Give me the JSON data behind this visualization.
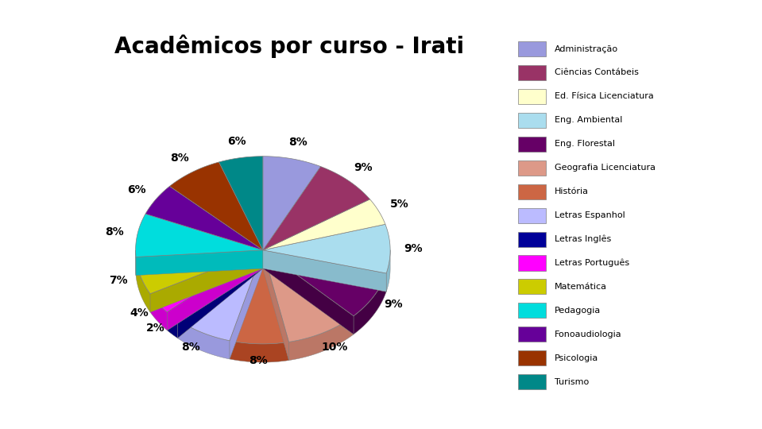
{
  "title": "Acadêmicos por curso - Irati",
  "title_fontsize": 20,
  "title_fontweight": "bold",
  "slices": [
    {
      "label": "Administração",
      "pct": 8,
      "color": "#9999DD",
      "side_color": "#7777BB"
    },
    {
      "label": "Ciências Contábeis",
      "pct": 9,
      "color": "#993366",
      "side_color": "#771144"
    },
    {
      "label": "Ed. Física Licenciatura",
      "pct": 5,
      "color": "#FFFFCC",
      "side_color": "#DDDDAA"
    },
    {
      "label": "Eng. Ambiental",
      "pct": 9,
      "color": "#AADDEE",
      "side_color": "#88BBCC"
    },
    {
      "label": "Eng. Florestal",
      "pct": 9,
      "color": "#660066",
      "side_color": "#440044"
    },
    {
      "label": "Geografia Licenciatura",
      "pct": 10,
      "color": "#DD9988",
      "side_color": "#BB7766"
    },
    {
      "label": "História",
      "pct": 8,
      "color": "#CC6644",
      "side_color": "#AA4422"
    },
    {
      "label": "Letras Espanhol",
      "pct": 8,
      "color": "#BBBBFF",
      "side_color": "#9999DD"
    },
    {
      "label": "Letras Inglês",
      "pct": 2,
      "color": "#000099",
      "side_color": "#000077"
    },
    {
      "label": "Letras Português",
      "pct": 4,
      "color": "#FF00FF",
      "side_color": "#CC00CC"
    },
    {
      "label": "Matemática",
      "pct": 7,
      "color": "#CCCC00",
      "side_color": "#AAAA00"
    },
    {
      "label": "Pedagogia",
      "pct": 8,
      "color": "#00DDDD",
      "side_color": "#00BBBB"
    },
    {
      "label": "Fonoaudiologia",
      "pct": 6,
      "color": "#660099",
      "side_color": "#440077"
    },
    {
      "label": "Psicologia",
      "pct": 8,
      "color": "#993300",
      "side_color": "#771100"
    },
    {
      "label": "Turismo",
      "pct": 6,
      "color": "#008888",
      "side_color": "#006666"
    }
  ],
  "legend_colors": {
    "Administração": "#9999DD",
    "Ciências Contábeis": "#993366",
    "Ed. Física Licenciatura": "#FFFFCC",
    "Eng. Ambiental": "#AADDEE",
    "Eng. Florestal": "#660066",
    "Geografia Licenciatura": "#DD9988",
    "História": "#CC6644",
    "Letras Espanhol": "#BBBBFF",
    "Letras Inglês": "#000099",
    "Letras Português": "#FF00FF",
    "Matemática": "#CCCC00",
    "Pedagogia": "#00DDDD",
    "Fonoaudiologia": "#660099",
    "Psicologia": "#993300",
    "Turismo": "#008888"
  }
}
